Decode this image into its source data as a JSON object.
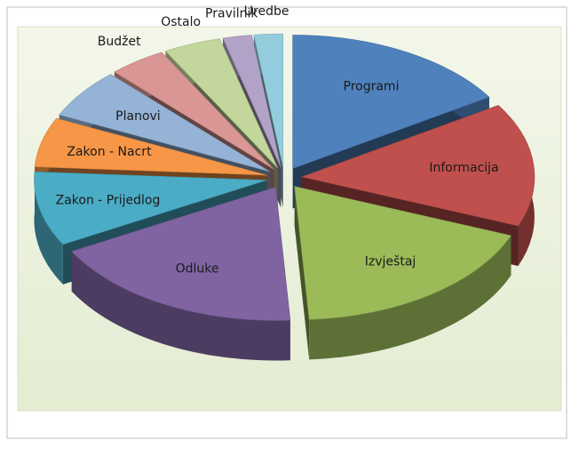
{
  "chart_data": {
    "type": "pie",
    "categories": [
      "Programi",
      "Informacija",
      "Izvještaj",
      "Odluke",
      "Zakon - Prijedlog",
      "Zakon - Nacrt",
      "Planovi",
      "Budžet",
      "Ostalo",
      "Pravilnik",
      "Uredbe"
    ],
    "values": [
      16,
      15,
      18,
      18,
      9,
      6,
      6,
      4,
      4,
      2,
      2
    ],
    "colors": [
      "#4f81bd",
      "#c0504d",
      "#9bbb59",
      "#8064a2",
      "#4bacc6",
      "#f79646",
      "#95b3d7",
      "#d99694",
      "#c3d69b",
      "#b3a2c7",
      "#93cddd"
    ]
  }
}
